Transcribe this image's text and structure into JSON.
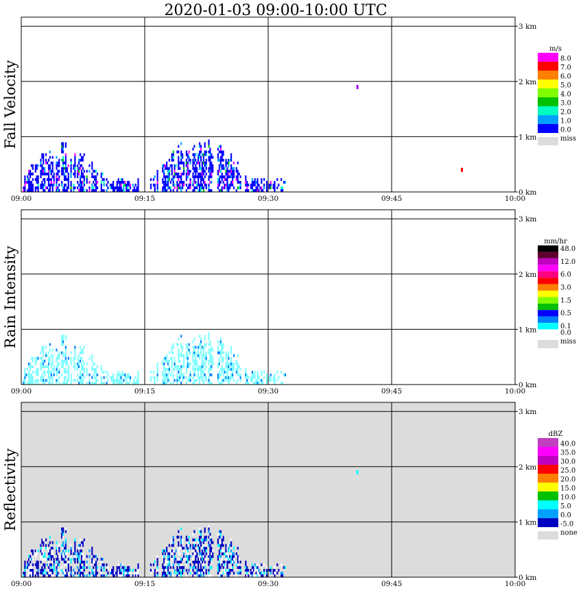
{
  "title": "2020-01-03   09:00-10:00 UTC",
  "colors": {
    "missing_background": "#dcdcdc",
    "grid": "#000000"
  },
  "chart_data": [
    {
      "type": "heatmap",
      "title": "Fall Velocity",
      "ylabel": "Fall Velocity",
      "x_ticks": [
        "09:00",
        "09:15",
        "09:30",
        "09:45",
        "10:00"
      ],
      "y_ticks": [
        "0 km",
        "1 km",
        "2 km",
        "3 km"
      ],
      "xlim": [
        "09:00",
        "10:00"
      ],
      "ylim_km": [
        0,
        3.2
      ],
      "grid": true,
      "background": "white",
      "colorbar": {
        "unit": "m/s",
        "labels": [
          "8.0",
          "7.0",
          "6.0",
          "5.0",
          "4.0",
          "3.0",
          "2.0",
          "1.0",
          "0.0"
        ],
        "colors": [
          "#ff00ff",
          "#ff0000",
          "#ff8000",
          "#ffff00",
          "#80ff00",
          "#00c000",
          "#00ffc0",
          "#00a0ff",
          "#0000ff"
        ],
        "miss_label": "miss",
        "miss_color": "#dcdcdc"
      },
      "echo_regions": [
        {
          "t_start_min": 0.2,
          "t_end_min": 14.5,
          "top_km": 0.88,
          "main_color": "#0000ff"
        },
        {
          "t_start_min": 15.5,
          "t_end_min": 32.0,
          "top_km": 0.98,
          "main_color": "#0000ff"
        }
      ],
      "isolated_points": [
        {
          "t_min": 40.8,
          "h_km": 1.9,
          "color": "#a000ff"
        },
        {
          "t_min": 53.5,
          "h_km": 0.4,
          "color": "#ff0000"
        }
      ]
    },
    {
      "type": "heatmap",
      "title": "Rain Intensity",
      "ylabel": "Rain Intensity",
      "x_ticks": [
        "09:00",
        "09:15",
        "09:30",
        "09:45",
        "10:00"
      ],
      "y_ticks": [
        "0 km",
        "1 km",
        "2 km",
        "3 km"
      ],
      "xlim": [
        "09:00",
        "10:00"
      ],
      "ylim_km": [
        0,
        3.2
      ],
      "grid": true,
      "background": "white",
      "colorbar": {
        "unit": "mm/hr",
        "labels": [
          "48.0",
          "",
          "12.0",
          "",
          "6.0",
          "",
          "3.0",
          "",
          "1.5",
          "",
          "0.5",
          "",
          "0.1",
          "0.0"
        ],
        "colors": [
          "#000000",
          "#600030",
          "#c000c0",
          "#ff00ff",
          "#ff0080",
          "#ff0000",
          "#ff8000",
          "#ffff00",
          "#80ff00",
          "#00c000",
          "#0000ff",
          "#0080ff",
          "#00ffff",
          "#ffffff"
        ],
        "miss_label": "miss",
        "miss_color": "#dcdcdc"
      },
      "echo_regions": [
        {
          "t_start_min": 0.2,
          "t_end_min": 14.5,
          "top_km": 0.88,
          "main_color": "#80ffff"
        },
        {
          "t_start_min": 15.5,
          "t_end_min": 32.0,
          "top_km": 0.98,
          "main_color": "#80ffff"
        }
      ],
      "isolated_points": []
    },
    {
      "type": "heatmap",
      "title": "Reflectivity",
      "ylabel": "Reflectivity",
      "x_ticks": [
        "09:00",
        "09:15",
        "09:30",
        "09:45",
        "10:00"
      ],
      "y_ticks": [
        "0 km",
        "1 km",
        "2 km",
        "3 km"
      ],
      "xlim": [
        "09:00",
        "10:00"
      ],
      "ylim_km": [
        0,
        3.2
      ],
      "grid": true,
      "background": "none",
      "colorbar": {
        "unit": "dBZ",
        "labels": [
          "40.0",
          "35.0",
          "30.0",
          "25.0",
          "20.0",
          "15.0",
          "10.0",
          "5.0",
          "0.0",
          "-5.0"
        ],
        "colors": [
          "#c040c0",
          "#ff00ff",
          "#c000c0",
          "#ff0000",
          "#ff8000",
          "#ffff00",
          "#00c000",
          "#00ffff",
          "#00a0ff",
          "#0000c0"
        ],
        "miss_label": "none",
        "miss_color": "#dcdcdc"
      },
      "echo_regions": [
        {
          "t_start_min": 0.2,
          "t_end_min": 14.5,
          "top_km": 0.88,
          "main_color": "#0000c0"
        },
        {
          "t_start_min": 15.5,
          "t_end_min": 32.0,
          "top_km": 0.98,
          "main_color": "#0000c0"
        }
      ],
      "isolated_points": [
        {
          "t_min": 40.8,
          "h_km": 1.9,
          "color": "#00ffff"
        }
      ]
    }
  ]
}
